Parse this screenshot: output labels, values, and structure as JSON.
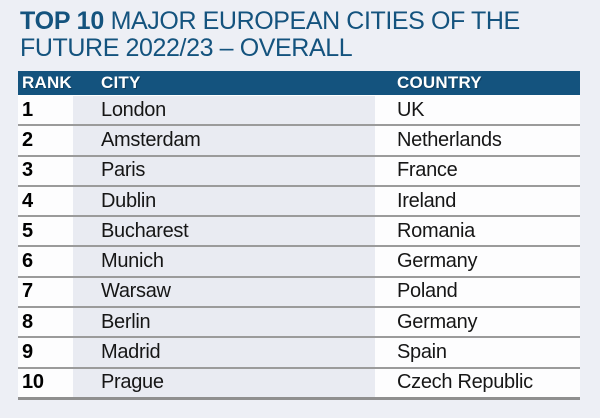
{
  "page": {
    "background_color": "#edeff5",
    "accent_color": "#14537e"
  },
  "title": {
    "bold": "TOP 10",
    "line1_rest": "MAJOR EUROPEAN CITIES OF THE",
    "line2": "FUTURE 2022/23 – OVERALL",
    "color": "#14537e"
  },
  "table": {
    "headers": [
      "RANK",
      "CITY",
      "COUNTRY"
    ],
    "header_bg": "#14537e",
    "header_text_color": "#ffffff",
    "city_column_bg": "#e9ebf2",
    "row_bg": "#fdfdfe",
    "separator_color": "#9b9b9b",
    "rows": [
      {
        "rank": "1",
        "city": "London",
        "country": "UK"
      },
      {
        "rank": "2",
        "city": "Amsterdam",
        "country": "Netherlands"
      },
      {
        "rank": "3",
        "city": "Paris",
        "country": "France"
      },
      {
        "rank": "4",
        "city": "Dublin",
        "country": "Ireland"
      },
      {
        "rank": "5",
        "city": "Bucharest",
        "country": "Romania"
      },
      {
        "rank": "6",
        "city": "Munich",
        "country": "Germany"
      },
      {
        "rank": "7",
        "city": "Warsaw",
        "country": "Poland"
      },
      {
        "rank": "8",
        "city": "Berlin",
        "country": "Germany"
      },
      {
        "rank": "9",
        "city": "Madrid",
        "country": "Spain"
      },
      {
        "rank": "10",
        "city": "Prague",
        "country": "Czech Republic"
      }
    ]
  },
  "chart_data": {
    "type": "table",
    "title": "TOP 10 MAJOR EUROPEAN CITIES OF THE FUTURE 2022/23 – OVERALL",
    "columns": [
      "RANK",
      "CITY",
      "COUNTRY"
    ],
    "rows": [
      [
        1,
        "London",
        "UK"
      ],
      [
        2,
        "Amsterdam",
        "Netherlands"
      ],
      [
        3,
        "Paris",
        "France"
      ],
      [
        4,
        "Dublin",
        "Ireland"
      ],
      [
        5,
        "Bucharest",
        "Romania"
      ],
      [
        6,
        "Munich",
        "Germany"
      ],
      [
        7,
        "Warsaw",
        "Poland"
      ],
      [
        8,
        "Berlin",
        "Germany"
      ],
      [
        9,
        "Madrid",
        "Spain"
      ],
      [
        10,
        "Prague",
        "Czech Republic"
      ]
    ]
  }
}
